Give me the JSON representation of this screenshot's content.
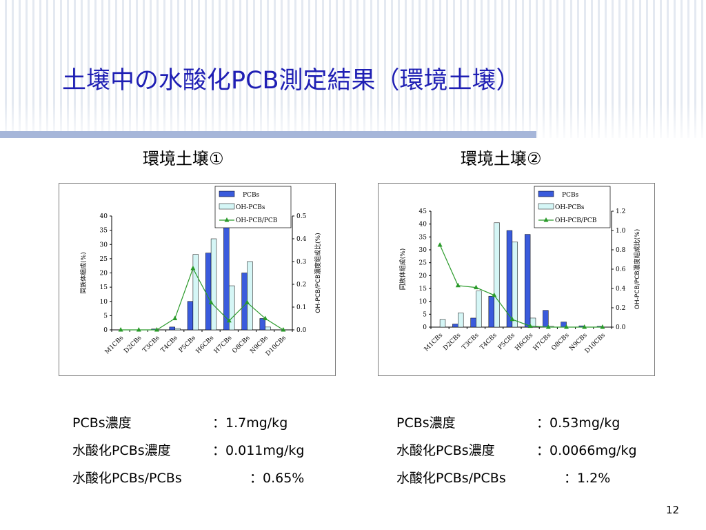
{
  "slide": {
    "title": "土壌中の水酸化PCB測定結果（環境土壌）",
    "page_number": "12",
    "left_heading": "環境土壌①",
    "right_heading": "環境土壌②",
    "left_stats": [
      {
        "label": "PCBs濃度",
        "value": "：1.7mg/kg"
      },
      {
        "label": "水酸化PCBs濃度",
        "value": "：0.011mg/kg"
      },
      {
        "label": "水酸化PCBs/PCBs",
        "value": "：0.65%"
      }
    ],
    "right_stats": [
      {
        "label": "PCBs濃度",
        "value": "：0.53mg/kg"
      },
      {
        "label": "水酸化PCBs濃度",
        "value": "：0.0066mg/kg"
      },
      {
        "label": "水酸化PCBs/PCBs",
        "value": "：1.2%"
      }
    ]
  },
  "colors": {
    "title": "#1f1fb4",
    "pcbs_bar": "#3a5bdc",
    "oh_pcbs_bar": "#d5f6f6",
    "ratio_line": "#2a9a2a",
    "title_rule": "#a6b6d9"
  },
  "chart_data": [
    {
      "type": "bar",
      "categories": [
        "M1CBs",
        "D2CBs",
        "T3CBs",
        "T4CBs",
        "P5CBs",
        "H6CBs",
        "H7CBs",
        "O8CBs",
        "N9CBs",
        "D10CBs"
      ],
      "series": [
        {
          "name": "PCBs",
          "type": "bar",
          "axis": "left",
          "values": [
            0,
            0,
            0.3,
            1,
            10,
            27,
            36,
            20,
            4,
            0
          ]
        },
        {
          "name": "OH-PCBs",
          "type": "bar",
          "axis": "left",
          "values": [
            0,
            0,
            0,
            0.5,
            26.5,
            32,
            15.5,
            24,
            1,
            0
          ]
        },
        {
          "name": "OH-PCB/PCB",
          "type": "line",
          "axis": "right",
          "values": [
            0,
            0,
            0,
            0.05,
            0.27,
            0.12,
            0.04,
            0.12,
            0.05,
            0
          ]
        }
      ],
      "ylabel": "同族体組成(%)",
      "y2label": "OH-PCB/PCB濃度組成比(%)",
      "ylim": [
        0,
        40
      ],
      "yticks": [
        "0",
        "5",
        "10",
        "15",
        "20",
        "25",
        "30",
        "35",
        "40"
      ],
      "y2lim": [
        0,
        0.5
      ],
      "y2ticks": [
        "0.0",
        "0.1",
        "0.2",
        "0.3",
        "0.4",
        "0.5"
      ],
      "legend": "top-right",
      "grid": false
    },
    {
      "type": "bar",
      "categories": [
        "M1CBs",
        "D2CBs",
        "T3CBs",
        "T4CBs",
        "P5CBs",
        "H6CBs",
        "H7CBs",
        "O8CBs",
        "N9CBs",
        "D10CBs"
      ],
      "series": [
        {
          "name": "PCBs",
          "type": "bar",
          "axis": "left",
          "values": [
            0,
            1.2,
            3.5,
            12,
            37.5,
            36,
            6.5,
            2,
            0.5,
            0.3
          ]
        },
        {
          "name": "OH-PCBs",
          "type": "bar",
          "axis": "left",
          "values": [
            3,
            5.5,
            14,
            40.5,
            33,
            3.5,
            0.3,
            0,
            0,
            0
          ]
        },
        {
          "name": "OH-PCB/PCB",
          "type": "line",
          "axis": "right",
          "values": [
            0.85,
            0.43,
            0.41,
            0.33,
            0.08,
            0.01,
            0,
            0,
            0,
            0
          ]
        }
      ],
      "ylabel": "同族体組成(%)",
      "y2label": "OH-PCB/PCB濃度組成比(%)",
      "ylim": [
        0,
        45
      ],
      "yticks": [
        "0",
        "5",
        "10",
        "15",
        "20",
        "25",
        "30",
        "35",
        "40",
        "45"
      ],
      "y2lim": [
        0,
        1.2
      ],
      "y2ticks": [
        "0.0",
        "0.2",
        "0.4",
        "0.6",
        "0.8",
        "1.0",
        "1.2"
      ],
      "legend": "top-right",
      "grid": false
    }
  ]
}
